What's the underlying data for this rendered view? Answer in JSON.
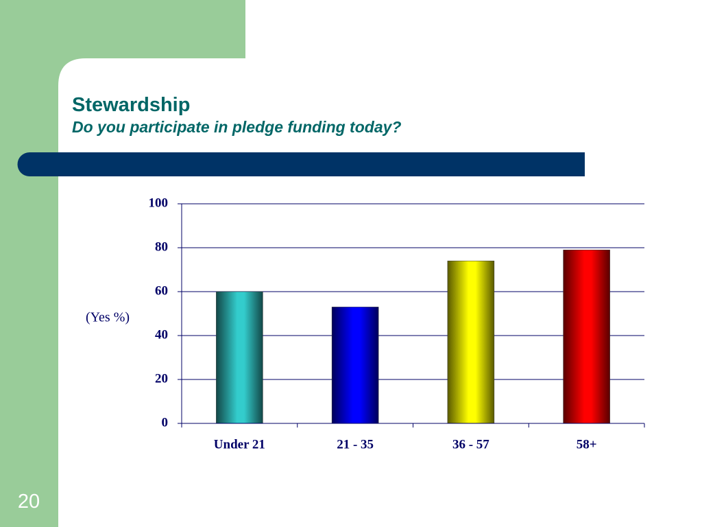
{
  "slide": {
    "title": "Stewardship",
    "subtitle": "Do you participate in pledge funding today?",
    "page_number": "20"
  },
  "chart_data": {
    "type": "bar",
    "y_label": "(Yes %)",
    "categories": [
      "Under 21",
      "21 - 35",
      "36 - 57",
      "58+"
    ],
    "values": [
      60,
      53,
      74,
      79
    ],
    "colors": [
      "#33cccc",
      "#0000ff",
      "#ffff00",
      "#ff0000"
    ],
    "ylim": [
      0,
      100
    ],
    "yticks": [
      0,
      20,
      40,
      60,
      80,
      100
    ],
    "grid": true
  }
}
